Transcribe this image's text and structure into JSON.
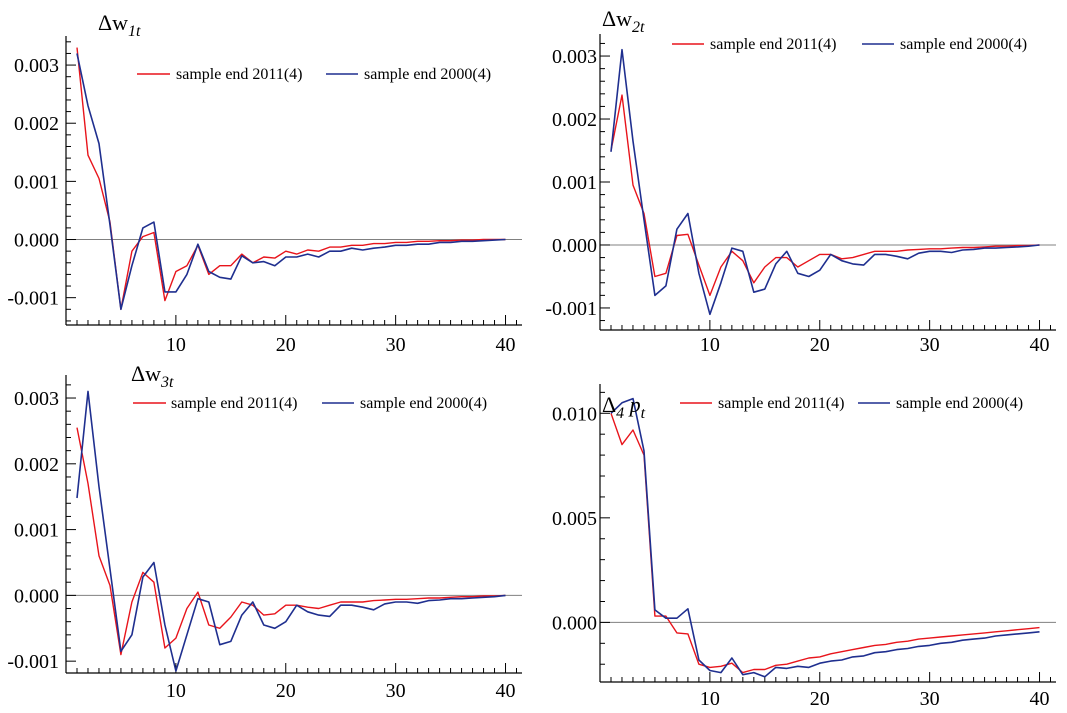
{
  "colors": {
    "red": "#e8141b",
    "blue": "#1f2f8f",
    "axis": "#000000",
    "zero_line": "#808080"
  },
  "chart_data": [
    {
      "type": "line",
      "title": "Δw",
      "title_sub": "1t",
      "x_ticks": [
        "10",
        "20",
        "30",
        "40"
      ],
      "y_ticks": [
        "0.003",
        "0.002",
        "0.001",
        "0.000",
        "-0.001"
      ],
      "x_range": [
        0,
        41.5
      ],
      "y_range": [
        -0.00147,
        0.0035
      ],
      "series": [
        {
          "name": "sample end 2011(4)",
          "color": "red",
          "x": [
            1,
            2,
            3,
            4,
            5,
            6,
            7,
            8,
            9,
            10,
            11,
            12,
            13,
            14,
            15,
            16,
            17,
            18,
            19,
            20,
            21,
            22,
            23,
            24,
            25,
            26,
            27,
            28,
            29,
            30,
            31,
            32,
            33,
            34,
            35,
            36,
            37,
            38,
            39,
            40
          ],
          "y": [
            0.0033,
            0.00145,
            0.00105,
            0.0003,
            -0.0012,
            -0.0002,
            5e-05,
            0.00012,
            -0.00105,
            -0.00055,
            -0.00045,
            -0.0001,
            -0.0006,
            -0.00045,
            -0.00045,
            -0.00025,
            -0.0004,
            -0.0003,
            -0.00032,
            -0.0002,
            -0.00025,
            -0.00018,
            -0.0002,
            -0.00013,
            -0.00013,
            -0.0001,
            -0.0001,
            -7e-05,
            -7e-05,
            -5e-05,
            -5e-05,
            -3e-05,
            -3e-05,
            -2e-05,
            -2e-05,
            -1e-05,
            -1e-05,
            0.0,
            0.0,
            0.0
          ]
        },
        {
          "name": "sample end 2000(4)",
          "color": "blue",
          "x": [
            1,
            2,
            3,
            4,
            5,
            6,
            7,
            8,
            9,
            10,
            11,
            12,
            13,
            14,
            15,
            16,
            17,
            18,
            19,
            20,
            21,
            22,
            23,
            24,
            25,
            26,
            27,
            28,
            29,
            30,
            31,
            32,
            33,
            34,
            35,
            36,
            37,
            38,
            39,
            40
          ],
          "y": [
            0.0032,
            0.0023,
            0.00165,
            0.00025,
            -0.0012,
            -0.00045,
            0.0002,
            0.0003,
            -0.0009,
            -0.0009,
            -0.0006,
            -8e-05,
            -0.00055,
            -0.00065,
            -0.00068,
            -0.00028,
            -0.0004,
            -0.00038,
            -0.00045,
            -0.0003,
            -0.0003,
            -0.00025,
            -0.0003,
            -0.0002,
            -0.0002,
            -0.00015,
            -0.00018,
            -0.00015,
            -0.00013,
            -0.0001,
            -0.0001,
            -8e-05,
            -8e-05,
            -5e-05,
            -5e-05,
            -3e-05,
            -3e-05,
            -2e-05,
            -1e-05,
            0.0
          ]
        }
      ]
    },
    {
      "type": "line",
      "title": "Δw",
      "title_sub": "2t",
      "x_ticks": [
        "10",
        "20",
        "30",
        "40"
      ],
      "y_ticks": [
        "0.003",
        "0.002",
        "0.001",
        "0.000",
        "-0.001"
      ],
      "x_range": [
        0,
        41.5
      ],
      "y_range": [
        -0.00135,
        0.00335
      ],
      "series": [
        {
          "name": "sample end 2011(4)",
          "color": "red",
          "x": [
            1,
            2,
            3,
            4,
            5,
            6,
            7,
            8,
            9,
            10,
            11,
            12,
            13,
            14,
            15,
            16,
            17,
            18,
            19,
            20,
            21,
            22,
            23,
            24,
            25,
            26,
            27,
            28,
            29,
            30,
            31,
            32,
            33,
            34,
            35,
            36,
            37,
            38,
            39,
            40
          ],
          "y": [
            0.0015,
            0.00238,
            0.00095,
            0.0005,
            -0.0005,
            -0.00045,
            0.00015,
            0.00017,
            -0.00032,
            -0.0008,
            -0.00035,
            -0.0001,
            -0.00025,
            -0.0006,
            -0.00035,
            -0.0002,
            -0.0002,
            -0.00035,
            -0.00025,
            -0.00015,
            -0.00015,
            -0.00022,
            -0.0002,
            -0.00015,
            -0.0001,
            -0.0001,
            -0.0001,
            -8e-05,
            -7e-05,
            -6e-05,
            -6e-05,
            -5e-05,
            -4e-05,
            -4e-05,
            -3e-05,
            -2e-05,
            -2e-05,
            -1e-05,
            -1e-05,
            0.0
          ]
        },
        {
          "name": "sample end 2000(4)",
          "color": "blue",
          "x": [
            1,
            2,
            3,
            4,
            5,
            6,
            7,
            8,
            9,
            10,
            11,
            12,
            13,
            14,
            15,
            16,
            17,
            18,
            19,
            20,
            21,
            22,
            23,
            24,
            25,
            26,
            27,
            28,
            29,
            30,
            31,
            32,
            33,
            34,
            35,
            36,
            37,
            38,
            39,
            40
          ],
          "y": [
            0.00148,
            0.0031,
            0.00165,
            0.0004,
            -0.0008,
            -0.00065,
            0.00025,
            0.0005,
            -0.00045,
            -0.0011,
            -0.0006,
            -5e-05,
            -0.0001,
            -0.00075,
            -0.0007,
            -0.0003,
            -0.0001,
            -0.00045,
            -0.0005,
            -0.0004,
            -0.00015,
            -0.00025,
            -0.0003,
            -0.00032,
            -0.00015,
            -0.00015,
            -0.00018,
            -0.00022,
            -0.00013,
            -0.0001,
            -0.0001,
            -0.00012,
            -8e-05,
            -7e-05,
            -5e-05,
            -5e-05,
            -4e-05,
            -3e-05,
            -2e-05,
            0.0
          ]
        }
      ]
    },
    {
      "type": "line",
      "title": "Δw",
      "title_sub": "3t",
      "x_ticks": [
        "10",
        "20",
        "30",
        "40"
      ],
      "y_ticks": [
        "0.003",
        "0.002",
        "0.001",
        "0.000",
        "-0.001"
      ],
      "x_range": [
        0,
        41.5
      ],
      "y_range": [
        -0.00118,
        0.00335
      ],
      "series": [
        {
          "name": "sample end 2011(4)",
          "color": "red",
          "x": [
            1,
            2,
            3,
            4,
            5,
            6,
            7,
            8,
            9,
            10,
            11,
            12,
            13,
            14,
            15,
            16,
            17,
            18,
            19,
            20,
            21,
            22,
            23,
            24,
            25,
            26,
            27,
            28,
            29,
            30,
            31,
            32,
            33,
            34,
            35,
            36,
            37,
            38,
            39,
            40
          ],
          "y": [
            0.00255,
            0.0017,
            0.0006,
            0.00015,
            -0.0009,
            -0.0001,
            0.00035,
            0.0002,
            -0.0008,
            -0.00065,
            -0.0002,
            5e-05,
            -0.00045,
            -0.0005,
            -0.00033,
            -0.0001,
            -0.00015,
            -0.0003,
            -0.00028,
            -0.00015,
            -0.00015,
            -0.00018,
            -0.0002,
            -0.00015,
            -0.0001,
            -0.0001,
            -0.0001,
            -8e-05,
            -7e-05,
            -6e-05,
            -6e-05,
            -5e-05,
            -4e-05,
            -4e-05,
            -3e-05,
            -2e-05,
            -2e-05,
            -1e-05,
            -1e-05,
            0.0
          ]
        },
        {
          "name": "sample end 2000(4)",
          "color": "blue",
          "x": [
            1,
            2,
            3,
            4,
            5,
            6,
            7,
            8,
            9,
            10,
            11,
            12,
            13,
            14,
            15,
            16,
            17,
            18,
            19,
            20,
            21,
            22,
            23,
            24,
            25,
            26,
            27,
            28,
            29,
            30,
            31,
            32,
            33,
            34,
            35,
            36,
            37,
            38,
            39,
            40
          ],
          "y": [
            0.00148,
            0.0031,
            0.00165,
            0.0004,
            -0.00085,
            -0.0006,
            0.00028,
            0.0005,
            -0.00045,
            -0.00115,
            -0.0006,
            -5e-05,
            -0.0001,
            -0.00075,
            -0.0007,
            -0.0003,
            -0.0001,
            -0.00045,
            -0.0005,
            -0.0004,
            -0.00015,
            -0.00025,
            -0.0003,
            -0.00032,
            -0.00015,
            -0.00015,
            -0.00018,
            -0.00022,
            -0.00013,
            -0.0001,
            -0.0001,
            -0.00012,
            -8e-05,
            -7e-05,
            -5e-05,
            -5e-05,
            -4e-05,
            -3e-05,
            -2e-05,
            0.0
          ]
        }
      ]
    },
    {
      "type": "line",
      "title": "Δ",
      "title_sub": "4",
      "title_tail": " p",
      "title_tail_sub": "t",
      "x_ticks": [
        "10",
        "20",
        "30",
        "40"
      ],
      "y_ticks": [
        "0.010",
        "0.005",
        "0.000"
      ],
      "x_range": [
        0,
        41.5
      ],
      "y_range": [
        -0.00285,
        0.0114
      ],
      "series": [
        {
          "name": "sample end 2011(4)",
          "color": "red",
          "x": [
            1,
            2,
            3,
            4,
            5,
            6,
            7,
            8,
            9,
            10,
            11,
            12,
            13,
            14,
            15,
            16,
            17,
            18,
            19,
            20,
            21,
            22,
            23,
            24,
            25,
            26,
            27,
            28,
            29,
            30,
            31,
            32,
            33,
            34,
            35,
            36,
            37,
            38,
            39,
            40
          ],
          "y": [
            0.01,
            0.0085,
            0.0092,
            0.008,
            0.0003,
            0.0003,
            -0.0005,
            -0.00055,
            -0.002,
            -0.00215,
            -0.0021,
            -0.00195,
            -0.0024,
            -0.00225,
            -0.00225,
            -0.00205,
            -0.002,
            -0.00185,
            -0.0017,
            -0.00165,
            -0.0015,
            -0.0014,
            -0.0013,
            -0.0012,
            -0.0011,
            -0.00105,
            -0.00095,
            -0.0009,
            -0.0008,
            -0.00075,
            -0.0007,
            -0.00065,
            -0.0006,
            -0.00055,
            -0.0005,
            -0.00045,
            -0.0004,
            -0.00035,
            -0.0003,
            -0.00025
          ]
        },
        {
          "name": "sample end 2000(4)",
          "color": "blue",
          "x": [
            1,
            2,
            3,
            4,
            5,
            6,
            7,
            8,
            9,
            10,
            11,
            12,
            13,
            14,
            15,
            16,
            17,
            18,
            19,
            20,
            21,
            22,
            23,
            24,
            25,
            26,
            27,
            28,
            29,
            30,
            31,
            32,
            33,
            34,
            35,
            36,
            37,
            38,
            39,
            40
          ],
          "y": [
            0.01,
            0.0105,
            0.0107,
            0.0082,
            0.0006,
            0.0002,
            0.0002,
            0.00065,
            -0.0018,
            -0.0023,
            -0.0024,
            -0.0017,
            -0.0025,
            -0.0024,
            -0.0026,
            -0.00215,
            -0.0022,
            -0.0021,
            -0.00215,
            -0.00195,
            -0.00185,
            -0.0018,
            -0.00165,
            -0.0016,
            -0.00145,
            -0.0014,
            -0.0013,
            -0.00125,
            -0.00115,
            -0.0011,
            -0.001,
            -0.00095,
            -0.00085,
            -0.0008,
            -0.00075,
            -0.00065,
            -0.0006,
            -0.00055,
            -0.0005,
            -0.00045
          ]
        }
      ]
    }
  ]
}
